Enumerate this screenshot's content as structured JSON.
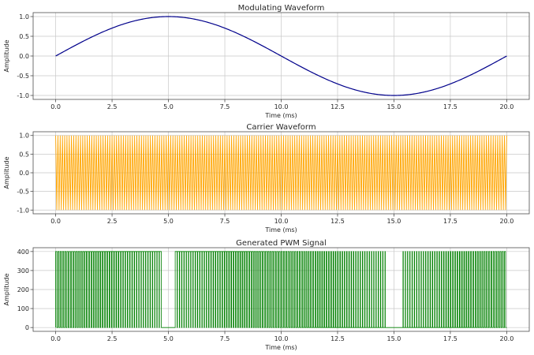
{
  "chart_data": [
    {
      "type": "line",
      "title": "Modulating Waveform",
      "xlabel": "Time (ms)",
      "ylabel": "Amplitude",
      "xlim": [
        -1.0,
        21.0
      ],
      "ylim": [
        -1.1,
        1.1
      ],
      "xticks": [
        "0.0",
        "2.5",
        "5.0",
        "7.5",
        "10.0",
        "12.5",
        "15.0",
        "17.5",
        "20.0"
      ],
      "yticks": [
        "-1.0",
        "-0.5",
        "0.0",
        "0.5",
        "1.0"
      ],
      "grid": true,
      "series": [
        {
          "color": "#00008b",
          "description": "sine wave, amplitude 1, period 20 ms",
          "x": [
            0,
            2.5,
            5,
            7.5,
            10,
            12.5,
            15,
            17.5,
            20
          ],
          "y": [
            0,
            0.707,
            1.0,
            0.707,
            0,
            -0.707,
            -1.0,
            -0.707,
            0
          ]
        }
      ]
    },
    {
      "type": "line",
      "title": "Carrier Waveform",
      "xlabel": "Time (ms)",
      "ylabel": "Amplitude",
      "xlim": [
        -1.0,
        21.0
      ],
      "ylim": [
        -1.1,
        1.1
      ],
      "xticks": [
        "0.0",
        "2.5",
        "5.0",
        "7.5",
        "10.0",
        "12.5",
        "15.0",
        "17.5",
        "20.0"
      ],
      "yticks": [
        "-1.0",
        "-0.5",
        "0.0",
        "0.5",
        "1.0"
      ],
      "grid": true,
      "series": [
        {
          "color": "#ffa500",
          "description": "high-frequency oscillation between -1 and 1, about 200 cycles over 0-20 ms",
          "amplitude": 1.0,
          "cycles": 200,
          "x_range": [
            0,
            20
          ]
        }
      ]
    },
    {
      "type": "line",
      "title": "Generated PWM Signal",
      "xlabel": "Time (ms)",
      "ylabel": "Amplitude",
      "xlim": [
        -1.0,
        21.0
      ],
      "ylim": [
        -20,
        420
      ],
      "xticks": [
        "0.0",
        "2.5",
        "5.0",
        "7.5",
        "10.0",
        "12.5",
        "15.0",
        "17.5",
        "20.0"
      ],
      "yticks": [
        "0",
        "100",
        "200",
        "300",
        "400"
      ],
      "grid": true,
      "series": [
        {
          "color": "#008000",
          "description": "pulse train switching between 0 and 400; pulses absent around 4.7-5.3 ms and 14.7-15.3 ms",
          "high": 400,
          "low": 0,
          "pulses": 200,
          "x_range": [
            0,
            20
          ],
          "gaps": [
            [
              4.7,
              5.3
            ],
            [
              14.7,
              15.3
            ]
          ]
        }
      ]
    }
  ]
}
